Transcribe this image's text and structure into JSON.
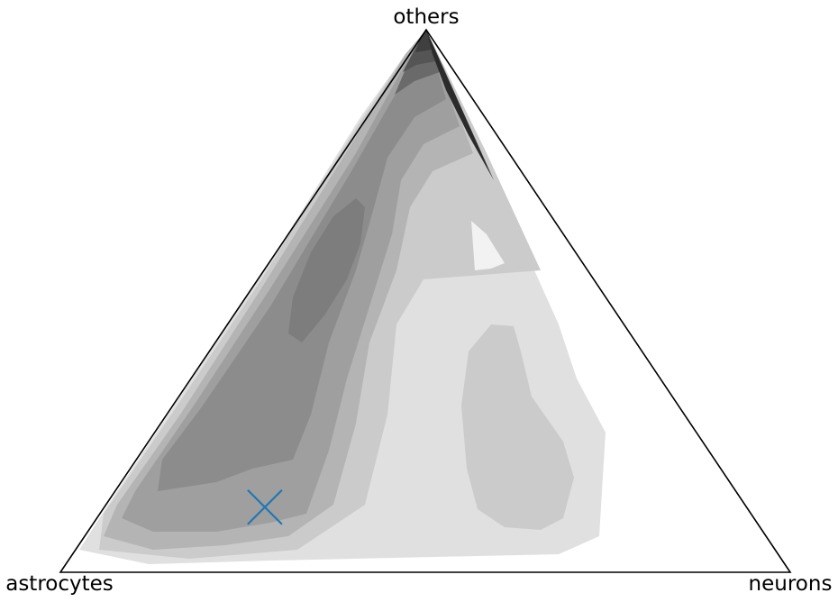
{
  "chart_data": {
    "type": "ternary-density-contour",
    "title": "",
    "vertices": {
      "top": "others",
      "left": "astrocytes",
      "right": "neurons"
    },
    "fill_levels": [
      "#f2f2f2",
      "#e0e0e0",
      "#cbcbcb",
      "#b4b4b4",
      "#9f9f9f",
      "#8c8c8c",
      "#7d7d7d",
      "#6a6a6a",
      "#555555",
      "#3f3f3f",
      "#2b2b2b",
      "#151515"
    ],
    "marker": {
      "shape": "x",
      "color": "#1f77b4",
      "composition": {
        "others": 0.12,
        "astrocytes": 0.66,
        "neurons": 0.22
      }
    }
  }
}
